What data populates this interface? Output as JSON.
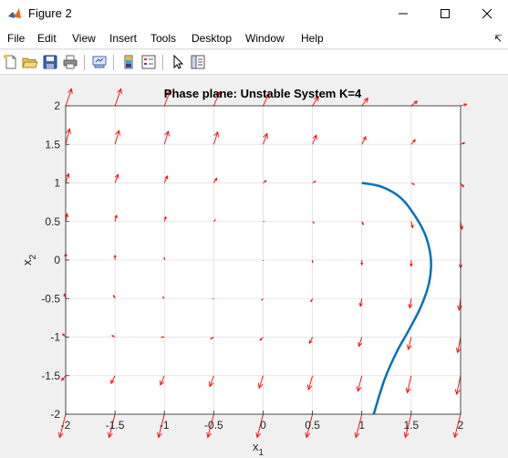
{
  "window": {
    "title": "Figure 2",
    "app_icon": "matlab-icon"
  },
  "menu": {
    "items": [
      "File",
      "Edit",
      "View",
      "Insert",
      "Tools",
      "Desktop",
      "Window",
      "Help"
    ],
    "dock_icon": "dock-arrow-icon"
  },
  "toolbar": {
    "buttons": [
      "new-figure-icon",
      "open-file-icon",
      "save-icon",
      "print-icon",
      "link-plot-icon",
      "colorbar-icon",
      "legend-icon",
      "edit-plot-icon",
      "property-inspector-icon"
    ]
  },
  "colors": {
    "arrow": "#ff0000",
    "trajectory": "#0072bd",
    "axes_bg": "#ffffff",
    "grid": "#dfdfdf"
  },
  "chart_data": {
    "type": "quiver",
    "title": "Phase plane: Unstable System K=4",
    "xlabel": "x",
    "xlabel_sub": "1",
    "ylabel": "x",
    "ylabel_sub": "2",
    "xlim": [
      -2,
      2
    ],
    "ylim": [
      -2,
      2
    ],
    "xticks": [
      "-2",
      "-1.5",
      "-1",
      "-0.5",
      "0",
      "0.5",
      "1",
      "1.5",
      "2"
    ],
    "yticks": [
      "2",
      "1.5",
      "1",
      "0.5",
      "0",
      "-0.5",
      "-1",
      "-1.5",
      "-2"
    ],
    "grid": true,
    "vector_field": {
      "x": [
        -2,
        -1.5,
        -1,
        -0.5,
        0,
        0.5,
        1,
        1.5,
        2
      ],
      "y": [
        2,
        1.5,
        1,
        0.5,
        0,
        -0.5,
        -1,
        -1.5,
        -2
      ],
      "u": [
        [
          0.06,
          0.06,
          0.06,
          0.06,
          0.06,
          0.06,
          0.06,
          0.06,
          0.06
        ],
        [
          0.04,
          0.04,
          0.04,
          0.04,
          0.04,
          0.04,
          0.04,
          0.04,
          0.04
        ],
        [
          0.03,
          0.03,
          0.03,
          0.03,
          0.03,
          0.03,
          0.03,
          0.03,
          0.03
        ],
        [
          0.015,
          0.015,
          0.015,
          0.015,
          0.015,
          0.015,
          0.015,
          0.015,
          0.015
        ],
        [
          0,
          0,
          0,
          0,
          0,
          0,
          0,
          0,
          0
        ],
        [
          -0.015,
          -0.015,
          -0.015,
          -0.015,
          -0.015,
          -0.015,
          -0.015,
          -0.015,
          -0.015
        ],
        [
          -0.03,
          -0.03,
          -0.03,
          -0.03,
          -0.03,
          -0.03,
          -0.03,
          -0.03,
          -0.03
        ],
        [
          -0.04,
          -0.04,
          -0.04,
          -0.04,
          -0.04,
          -0.04,
          -0.04,
          -0.04,
          -0.04
        ],
        [
          -0.06,
          -0.06,
          -0.06,
          -0.06,
          -0.06,
          -0.06,
          -0.06,
          -0.06,
          -0.06
        ]
      ],
      "v": [
        [
          0.22,
          0.22,
          0.2,
          0.18,
          0.16,
          0.12,
          0.1,
          0.06,
          0.02
        ],
        [
          0.2,
          0.18,
          0.17,
          0.16,
          0.14,
          0.12,
          0.1,
          0.06,
          0.02
        ],
        [
          0.12,
          0.11,
          0.09,
          0.06,
          0.03,
          0.02,
          0,
          -0.02,
          -0.05
        ],
        [
          0.1,
          0.08,
          0.06,
          0.02,
          0,
          -0.02,
          -0.04,
          -0.08,
          -0.1
        ],
        [
          0.08,
          0.06,
          0.03,
          0,
          -0.01,
          -0.03,
          -0.06,
          -0.08,
          -0.1
        ],
        [
          0.06,
          0.04,
          0.02,
          0,
          -0.02,
          -0.04,
          -0.1,
          -0.12,
          -0.15
        ],
        [
          0.04,
          0.02,
          0,
          -0.02,
          -0.04,
          -0.08,
          -0.12,
          -0.16,
          -0.2
        ],
        [
          -0.06,
          -0.1,
          -0.12,
          -0.14,
          -0.16,
          -0.18,
          -0.2,
          -0.22,
          -0.24
        ],
        [
          -0.3,
          -0.3,
          -0.3,
          -0.3,
          -0.3,
          -0.3,
          -0.3,
          -0.3,
          -0.3
        ]
      ]
    },
    "trajectory": {
      "x": [
        1.0,
        1.2,
        1.4,
        1.55,
        1.65,
        1.7,
        1.68,
        1.6,
        1.48,
        1.35,
        1.23,
        1.12
      ],
      "y": [
        1.0,
        0.95,
        0.8,
        0.55,
        0.3,
        0.0,
        -0.3,
        -0.6,
        -0.9,
        -1.2,
        -1.55,
        -2.0
      ]
    }
  }
}
